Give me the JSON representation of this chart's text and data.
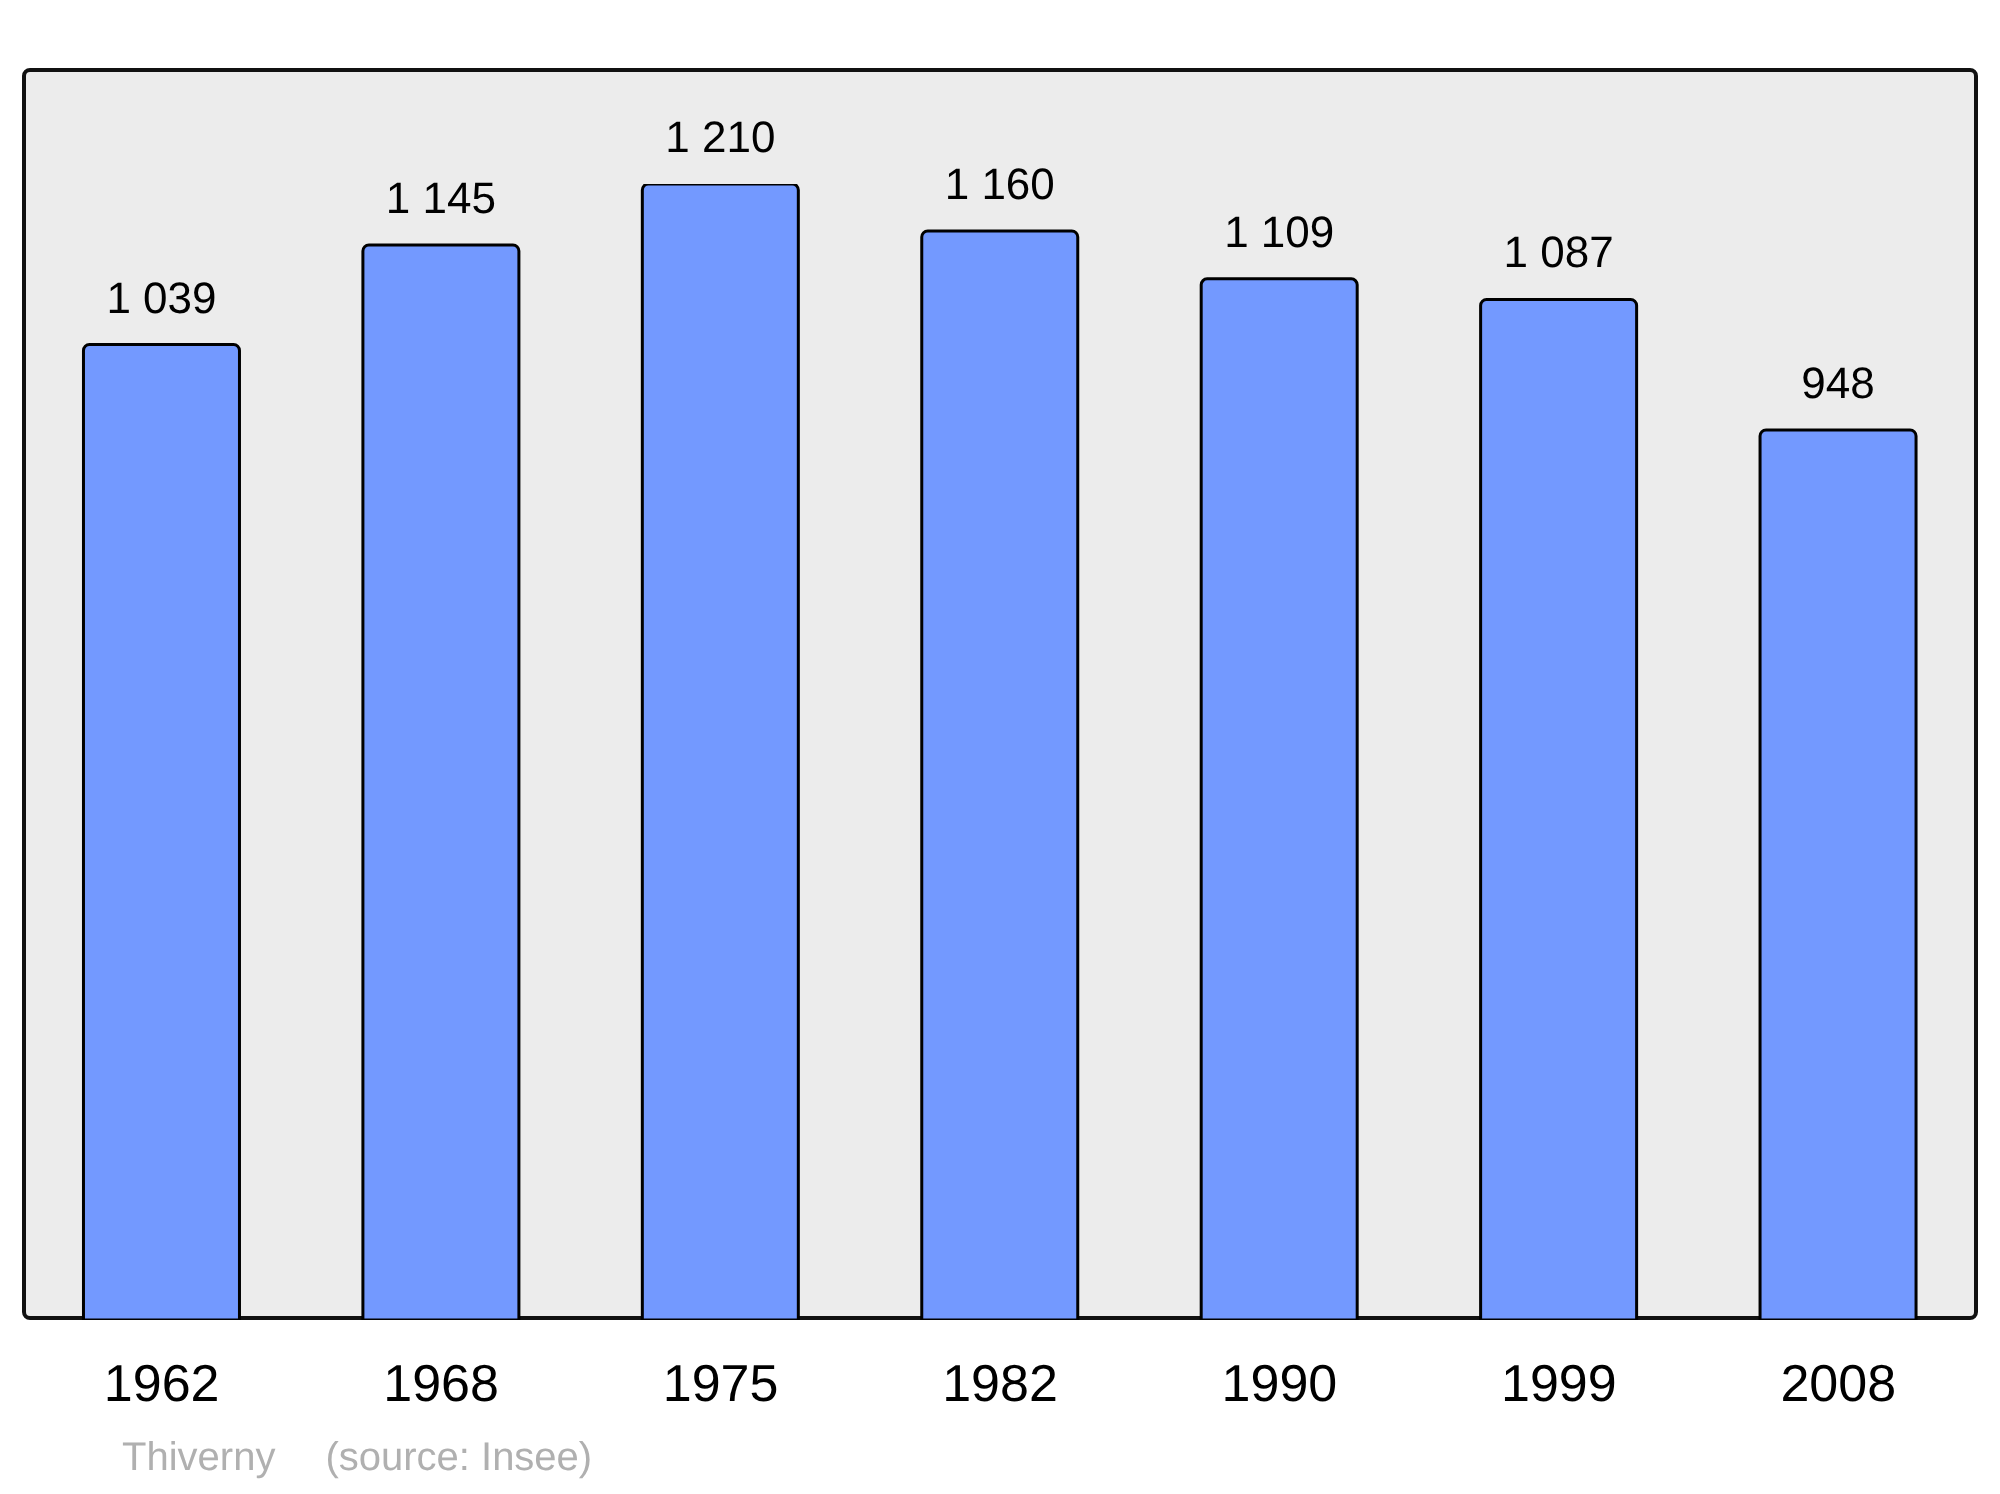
{
  "chart_data": {
    "type": "bar",
    "categories": [
      "1962",
      "1968",
      "1975",
      "1982",
      "1990",
      "1999",
      "2008"
    ],
    "values": [
      1039,
      1145,
      1210,
      1160,
      1109,
      1087,
      948
    ],
    "value_labels": [
      "1 039",
      "1 145",
      "1 210",
      "1 160",
      "1 109",
      "1 087",
      "948"
    ],
    "color": "#7399ff",
    "annotations": [
      "Thiverny",
      "(source: Insee)"
    ]
  }
}
